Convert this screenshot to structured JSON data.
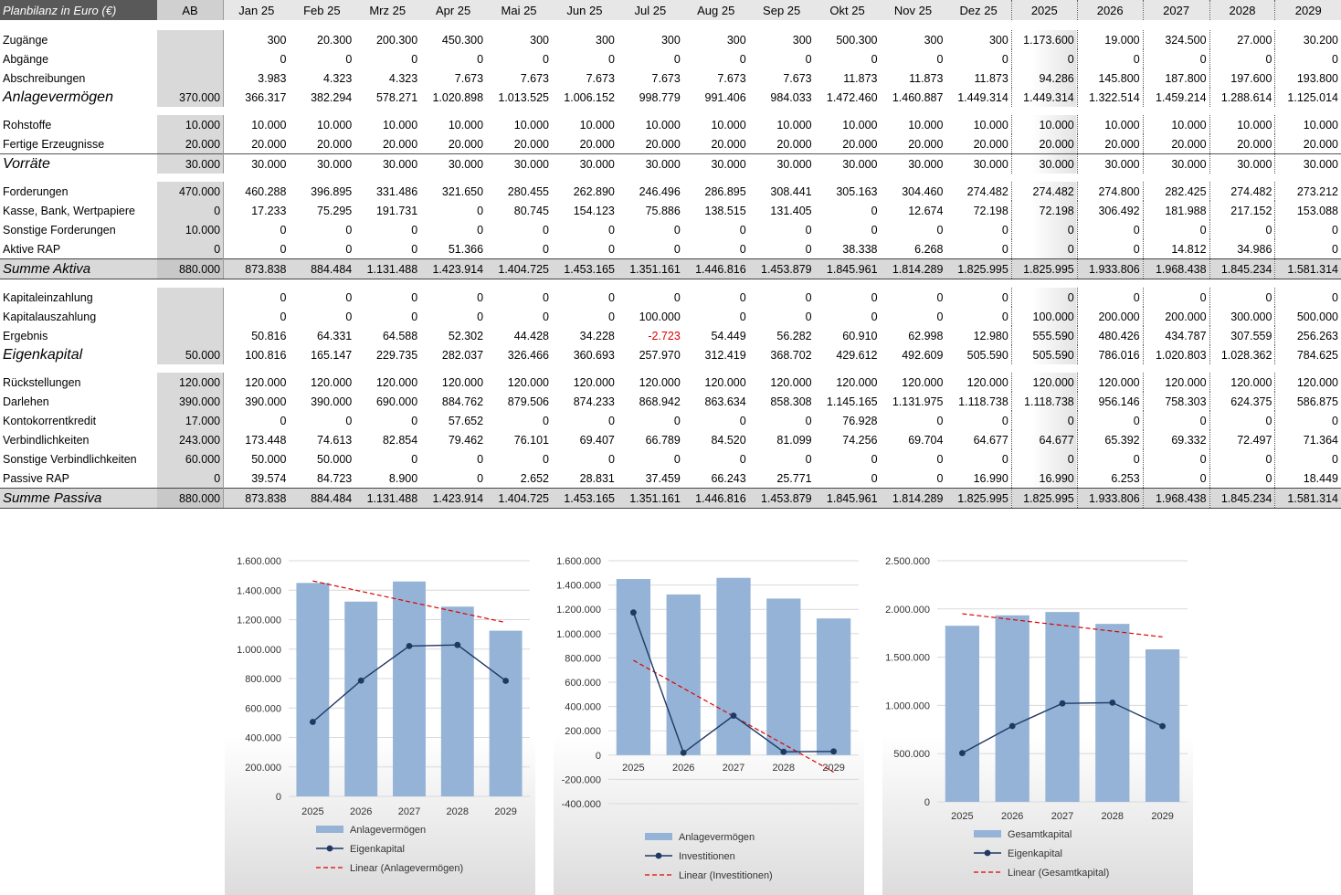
{
  "sheet": {
    "title": "Planbilanz in Euro (€)",
    "columns": [
      "AB",
      "Jan 25",
      "Feb 25",
      "Mrz 25",
      "Apr 25",
      "Mai 25",
      "Jun 25",
      "Jul 25",
      "Aug 25",
      "Sep 25",
      "Okt 25",
      "Nov 25",
      "Dez 25",
      "2025",
      "2026",
      "2027",
      "2028",
      "2029"
    ],
    "rows": [
      {
        "label": "Zugänge",
        "kind": "normal",
        "values": [
          "",
          "300",
          "20.300",
          "200.300",
          "450.300",
          "300",
          "300",
          "300",
          "300",
          "300",
          "500.300",
          "300",
          "300",
          "1.173.600",
          "19.000",
          "324.500",
          "27.000",
          "30.200"
        ]
      },
      {
        "label": "Abgänge",
        "kind": "normal",
        "values": [
          "",
          "0",
          "0",
          "0",
          "0",
          "0",
          "0",
          "0",
          "0",
          "0",
          "0",
          "0",
          "0",
          "0",
          "0",
          "0",
          "0",
          "0"
        ]
      },
      {
        "label": "Abschreibungen",
        "kind": "normal",
        "values": [
          "",
          "3.983",
          "4.323",
          "4.323",
          "7.673",
          "7.673",
          "7.673",
          "7.673",
          "7.673",
          "7.673",
          "11.873",
          "11.873",
          "11.873",
          "94.286",
          "145.800",
          "187.800",
          "197.600",
          "193.800"
        ]
      },
      {
        "label": "Anlagevermögen",
        "kind": "total",
        "values": [
          "370.000",
          "366.317",
          "382.294",
          "578.271",
          "1.020.898",
          "1.013.525",
          "1.006.152",
          "998.779",
          "991.406",
          "984.033",
          "1.472.460",
          "1.460.887",
          "1.449.314",
          "1.449.314",
          "1.322.514",
          "1.459.214",
          "1.288.614",
          "1.125.014"
        ]
      },
      {
        "label": "Rohstoffe",
        "kind": "normal",
        "values": [
          "10.000",
          "10.000",
          "10.000",
          "10.000",
          "10.000",
          "10.000",
          "10.000",
          "10.000",
          "10.000",
          "10.000",
          "10.000",
          "10.000",
          "10.000",
          "10.000",
          "10.000",
          "10.000",
          "10.000",
          "10.000"
        ]
      },
      {
        "label": "Fertige Erzeugnisse",
        "kind": "normal",
        "values": [
          "20.000",
          "20.000",
          "20.000",
          "20.000",
          "20.000",
          "20.000",
          "20.000",
          "20.000",
          "20.000",
          "20.000",
          "20.000",
          "20.000",
          "20.000",
          "20.000",
          "20.000",
          "20.000",
          "20.000",
          "20.000"
        ]
      },
      {
        "label": "Vorräte",
        "kind": "totalb",
        "values": [
          "30.000",
          "30.000",
          "30.000",
          "30.000",
          "30.000",
          "30.000",
          "30.000",
          "30.000",
          "30.000",
          "30.000",
          "30.000",
          "30.000",
          "30.000",
          "30.000",
          "30.000",
          "30.000",
          "30.000",
          "30.000"
        ]
      },
      {
        "label": "Forderungen",
        "kind": "normal",
        "values": [
          "470.000",
          "460.288",
          "396.895",
          "331.486",
          "321.650",
          "280.455",
          "262.890",
          "246.496",
          "286.895",
          "308.441",
          "305.163",
          "304.460",
          "274.482",
          "274.482",
          "274.800",
          "282.425",
          "274.482",
          "273.212"
        ]
      },
      {
        "label": "Kasse, Bank, Wertpapiere",
        "kind": "normal",
        "values": [
          "0",
          "17.233",
          "75.295",
          "191.731",
          "0",
          "80.745",
          "154.123",
          "75.886",
          "138.515",
          "131.405",
          "0",
          "12.674",
          "72.198",
          "72.198",
          "306.492",
          "181.988",
          "217.152",
          "153.088"
        ]
      },
      {
        "label": "Sonstige Forderungen",
        "kind": "normal",
        "values": [
          "10.000",
          "0",
          "0",
          "0",
          "0",
          "0",
          "0",
          "0",
          "0",
          "0",
          "0",
          "0",
          "0",
          "0",
          "0",
          "0",
          "0",
          "0"
        ]
      },
      {
        "label": "Aktive RAP",
        "kind": "normal",
        "values": [
          "0",
          "0",
          "0",
          "0",
          "51.366",
          "0",
          "0",
          "0",
          "0",
          "0",
          "38.338",
          "6.268",
          "0",
          "0",
          "0",
          "14.812",
          "34.986",
          "0"
        ]
      },
      {
        "label": "Summe Aktiva",
        "kind": "sum",
        "values": [
          "880.000",
          "873.838",
          "884.484",
          "1.131.488",
          "1.423.914",
          "1.404.725",
          "1.453.165",
          "1.351.161",
          "1.446.816",
          "1.453.879",
          "1.845.961",
          "1.814.289",
          "1.825.995",
          "1.825.995",
          "1.933.806",
          "1.968.438",
          "1.845.234",
          "1.581.314"
        ]
      },
      {
        "label": "Kapitaleinzahlung",
        "kind": "normal",
        "values": [
          "",
          "0",
          "0",
          "0",
          "0",
          "0",
          "0",
          "0",
          "0",
          "0",
          "0",
          "0",
          "0",
          "0",
          "0",
          "0",
          "0",
          "0"
        ]
      },
      {
        "label": "Kapitalauszahlung",
        "kind": "normal",
        "values": [
          "",
          "0",
          "0",
          "0",
          "0",
          "0",
          "0",
          "100.000",
          "0",
          "0",
          "0",
          "0",
          "0",
          "100.000",
          "200.000",
          "200.000",
          "300.000",
          "500.000"
        ]
      },
      {
        "label": "Ergebnis",
        "kind": "normal",
        "values": [
          "",
          "50.816",
          "64.331",
          "64.588",
          "52.302",
          "44.428",
          "34.228",
          "-2.723",
          "54.449",
          "56.282",
          "60.910",
          "62.998",
          "12.980",
          "555.590",
          "480.426",
          "434.787",
          "307.559",
          "256.263"
        ]
      },
      {
        "label": "Eigenkapital",
        "kind": "total",
        "values": [
          "50.000",
          "100.816",
          "165.147",
          "229.735",
          "282.037",
          "326.466",
          "360.693",
          "257.970",
          "312.419",
          "368.702",
          "429.612",
          "492.609",
          "505.590",
          "505.590",
          "786.016",
          "1.020.803",
          "1.028.362",
          "784.625"
        ]
      },
      {
        "label": "Rückstellungen",
        "kind": "normal",
        "values": [
          "120.000",
          "120.000",
          "120.000",
          "120.000",
          "120.000",
          "120.000",
          "120.000",
          "120.000",
          "120.000",
          "120.000",
          "120.000",
          "120.000",
          "120.000",
          "120.000",
          "120.000",
          "120.000",
          "120.000",
          "120.000"
        ]
      },
      {
        "label": "Darlehen",
        "kind": "normal",
        "values": [
          "390.000",
          "390.000",
          "390.000",
          "690.000",
          "884.762",
          "879.506",
          "874.233",
          "868.942",
          "863.634",
          "858.308",
          "1.145.165",
          "1.131.975",
          "1.118.738",
          "1.118.738",
          "956.146",
          "758.303",
          "624.375",
          "586.875"
        ]
      },
      {
        "label": "Kontokorrentkredit",
        "kind": "normal",
        "values": [
          "17.000",
          "0",
          "0",
          "0",
          "57.652",
          "0",
          "0",
          "0",
          "0",
          "0",
          "76.928",
          "0",
          "0",
          "0",
          "0",
          "0",
          "0",
          "0"
        ]
      },
      {
        "label": "Verbindlichkeiten",
        "kind": "normal",
        "values": [
          "243.000",
          "173.448",
          "74.613",
          "82.854",
          "79.462",
          "76.101",
          "69.407",
          "66.789",
          "84.520",
          "81.099",
          "74.256",
          "69.704",
          "64.677",
          "64.677",
          "65.392",
          "69.332",
          "72.497",
          "71.364"
        ]
      },
      {
        "label": "Sonstige Verbindlichkeiten",
        "kind": "normal",
        "values": [
          "60.000",
          "50.000",
          "50.000",
          "0",
          "0",
          "0",
          "0",
          "0",
          "0",
          "0",
          "0",
          "0",
          "0",
          "0",
          "0",
          "0",
          "0",
          "0"
        ]
      },
      {
        "label": "Passive RAP",
        "kind": "normal",
        "values": [
          "0",
          "39.574",
          "84.723",
          "8.900",
          "0",
          "2.652",
          "28.831",
          "37.459",
          "66.243",
          "25.771",
          "0",
          "0",
          "16.990",
          "16.990",
          "6.253",
          "0",
          "0",
          "18.449"
        ]
      },
      {
        "label": "Summe Passiva",
        "kind": "sum",
        "values": [
          "880.000",
          "873.838",
          "884.484",
          "1.131.488",
          "1.423.914",
          "1.404.725",
          "1.453.165",
          "1.351.161",
          "1.446.816",
          "1.453.879",
          "1.845.961",
          "1.814.289",
          "1.825.995",
          "1.825.995",
          "1.933.806",
          "1.968.438",
          "1.845.234",
          "1.581.314"
        ]
      }
    ]
  },
  "colors": {
    "bar": "#95b3d7",
    "line": "#1f3864",
    "trend": "#e00000",
    "negative_tick": "#e00000"
  },
  "chart_data": [
    {
      "type": "bar",
      "categories": [
        "2025",
        "2026",
        "2027",
        "2028",
        "2029"
      ],
      "series": [
        {
          "name": "Anlagevermögen",
          "kind": "bar",
          "values": [
            1449314,
            1322514,
            1459214,
            1288614,
            1125014
          ]
        },
        {
          "name": "Eigenkapital",
          "kind": "line",
          "values": [
            505590,
            786016,
            1020803,
            1028362,
            784625
          ]
        },
        {
          "name": "Linear (Anlagevermögen)",
          "kind": "trend",
          "values": [
            1462814,
            1392262,
            1321711,
            1251159,
            1180607
          ]
        }
      ],
      "ylim": [
        0,
        1600000
      ],
      "yticks": [
        "0",
        "200.000",
        "400.000",
        "600.000",
        "800.000",
        "1.000.000",
        "1.200.000",
        "1.400.000",
        "1.600.000"
      ],
      "legend_position": "bottom"
    },
    {
      "type": "bar",
      "categories": [
        "2025",
        "2026",
        "2027",
        "2028",
        "2029"
      ],
      "series": [
        {
          "name": "Anlagevermögen",
          "kind": "bar",
          "values": [
            1449314,
            1322514,
            1459214,
            1288614,
            1125014
          ]
        },
        {
          "name": "Investitionen",
          "kind": "line",
          "values": [
            1173600,
            19000,
            324500,
            27000,
            30200
          ]
        },
        {
          "name": "Linear (Investitionen)",
          "kind": "trend",
          "values": [
            780000,
            550000,
            320000,
            90000,
            -140000
          ]
        }
      ],
      "ylim": [
        -400000,
        1600000
      ],
      "yticks": [
        "-400.000",
        "-200.000",
        "0",
        "200.000",
        "400.000",
        "600.000",
        "800.000",
        "1.000.000",
        "1.200.000",
        "1.400.000",
        "1.600.000"
      ],
      "legend_position": "bottom"
    },
    {
      "type": "bar",
      "categories": [
        "2025",
        "2026",
        "2027",
        "2028",
        "2029"
      ],
      "series": [
        {
          "name": "Gesamtkapital",
          "kind": "bar",
          "values": [
            1825995,
            1933806,
            1968438,
            1845234,
            1581314
          ]
        },
        {
          "name": "Eigenkapital",
          "kind": "line",
          "values": [
            505590,
            786016,
            1020803,
            1028362,
            784625
          ]
        },
        {
          "name": "Linear (Gesamtkapital)",
          "kind": "trend",
          "values": [
            1950000,
            1890000,
            1830000,
            1770000,
            1710000
          ]
        }
      ],
      "ylim": [
        0,
        2500000
      ],
      "yticks": [
        "0",
        "500.000",
        "1.000.000",
        "1.500.000",
        "2.000.000",
        "2.500.000"
      ],
      "legend_position": "bottom"
    }
  ]
}
